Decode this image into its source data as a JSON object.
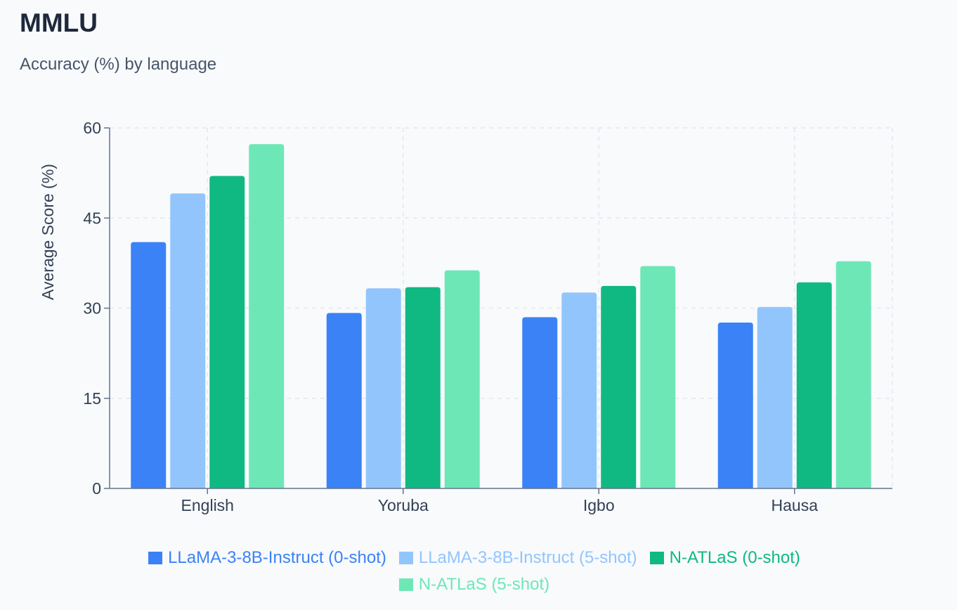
{
  "header": {
    "title": "MMLU",
    "subtitle": "Accuracy (%) by language"
  },
  "chart_data": {
    "type": "bar",
    "title": "MMLU",
    "subtitle": "Accuracy (%) by language",
    "xlabel": "",
    "ylabel": "Average Score (%)",
    "ylim": [
      0,
      60
    ],
    "yticks": [
      0,
      15,
      30,
      45,
      60
    ],
    "grid": true,
    "legend": "bottom",
    "categories": [
      "English",
      "Yoruba",
      "Igbo",
      "Hausa"
    ],
    "series": [
      {
        "name": "LLaMA-3-8B-Instruct (0-shot)",
        "color": "#3b82f6",
        "values": [
          41.0,
          29.2,
          28.5,
          27.6
        ]
      },
      {
        "name": "LLaMA-3-8B-Instruct (5-shot)",
        "color": "#93c5fd",
        "values": [
          49.1,
          33.3,
          32.6,
          30.2
        ]
      },
      {
        "name": "N-ATLaS (0-shot)",
        "color": "#10b981",
        "values": [
          52.0,
          33.5,
          33.7,
          34.3
        ]
      },
      {
        "name": "N-ATLaS (5-shot)",
        "color": "#6ee7b7",
        "values": [
          57.3,
          36.3,
          37.0,
          37.8
        ]
      }
    ]
  }
}
